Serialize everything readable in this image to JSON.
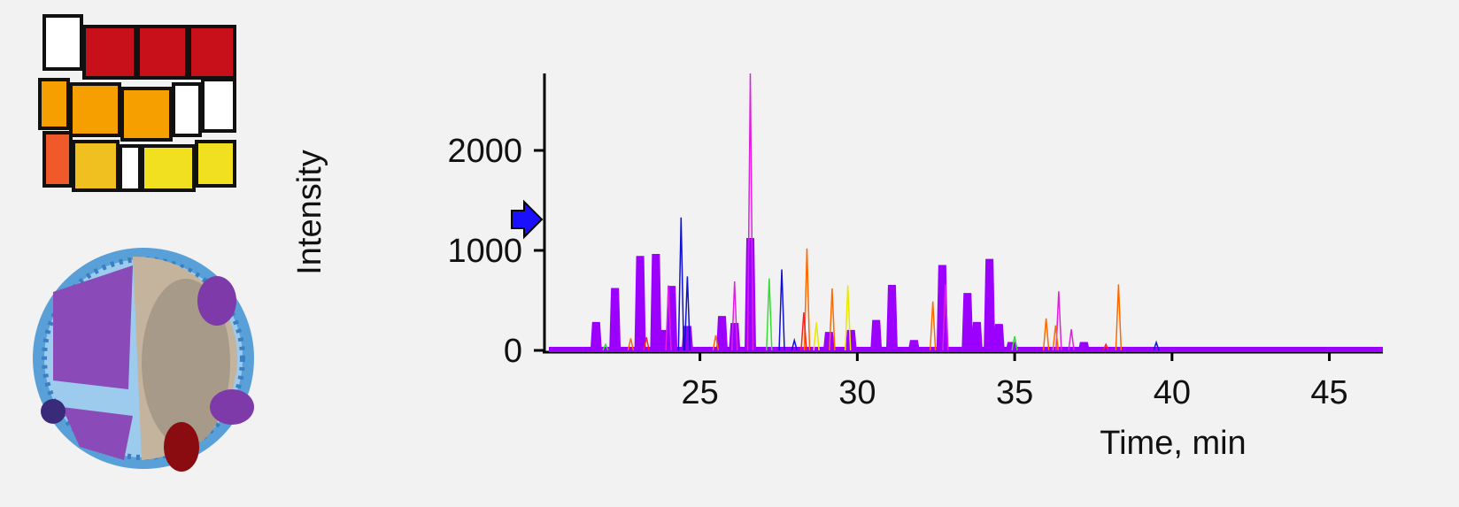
{
  "chart_data": {
    "type": "peaks",
    "y_label": "Intensity",
    "x_label": "Time, min",
    "xlim": [
      20.2,
      46.7
    ],
    "ylim": [
      0,
      2770
    ],
    "xticks": [
      25,
      30,
      35,
      40,
      45
    ],
    "yticks": [
      0,
      1000,
      2000
    ],
    "series": [
      {
        "color": "#9b00ff",
        "x": [
          21.7,
          22.3,
          23.1,
          23.6,
          23.8,
          24.1,
          24.6,
          25.7,
          26.1,
          26.6,
          29.1,
          29.8,
          30.6,
          31.1,
          31.8,
          32.7,
          33.5,
          33.8,
          34.2,
          34.5,
          34.9,
          37.2
        ],
        "values": [
          280,
          620,
          940,
          960,
          200,
          640,
          240,
          340,
          270,
          1120,
          180,
          200,
          300,
          650,
          100,
          850,
          570,
          280,
          910,
          260,
          80,
          80
        ]
      },
      {
        "color": "#e020e0",
        "x": [
          24.0,
          26.1,
          26.6,
          32.8,
          36.4,
          36.8
        ],
        "values": [
          650,
          690,
          2770,
          660,
          590,
          210
        ]
      },
      {
        "color": "#1010d0",
        "x": [
          24.4,
          24.6,
          27.6,
          28.0,
          39.5
        ],
        "values": [
          1330,
          740,
          810,
          100,
          80
        ]
      },
      {
        "color": "#ff6a00",
        "x": [
          22.8,
          25.5,
          28.4,
          29.2,
          32.4,
          36.0,
          36.3,
          38.3
        ],
        "values": [
          120,
          150,
          1020,
          620,
          490,
          320,
          250,
          660
        ]
      },
      {
        "color": "#33dd33",
        "x": [
          22.0,
          27.2,
          35.0
        ],
        "values": [
          60,
          720,
          140
        ]
      },
      {
        "color": "#e8e800",
        "x": [
          28.7,
          29.7
        ],
        "values": [
          280,
          650
        ]
      },
      {
        "color": "#ff2020",
        "x": [
          23.3,
          28.3,
          37.9
        ],
        "values": [
          130,
          380,
          60
        ]
      }
    ]
  }
}
